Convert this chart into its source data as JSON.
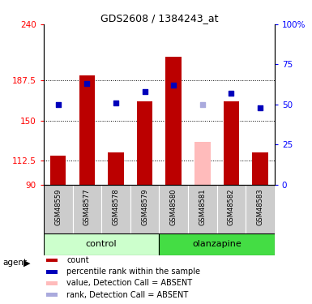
{
  "title": "GDS2608 / 1384243_at",
  "samples": [
    "GSM48559",
    "GSM48577",
    "GSM48578",
    "GSM48579",
    "GSM48580",
    "GSM48581",
    "GSM48582",
    "GSM48583"
  ],
  "red_values": [
    117,
    192,
    120,
    168,
    210,
    null,
    168,
    120
  ],
  "pink_values": [
    null,
    null,
    null,
    null,
    null,
    130,
    null,
    null
  ],
  "blue_values": [
    50,
    63,
    51,
    58,
    62,
    null,
    57,
    48
  ],
  "lightblue_values": [
    null,
    null,
    null,
    null,
    null,
    50,
    null,
    null
  ],
  "ymin": 90,
  "ymax": 240,
  "yticks": [
    90,
    112.5,
    150,
    187.5,
    240
  ],
  "ytick_labels": [
    "90",
    "112.5",
    "150",
    "187.5",
    "240"
  ],
  "right_yticks": [
    0,
    25,
    50,
    75,
    100
  ],
  "right_ytick_labels": [
    "0",
    "25",
    "50",
    "75",
    "100%"
  ],
  "group_label": "agent",
  "control_color": "#ccffcc",
  "olanzapine_color": "#44dd44",
  "bar_color_red": "#bb0000",
  "bar_color_pink": "#ffbbbb",
  "bar_color_blue": "#0000bb",
  "bar_color_lightblue": "#aaaadd",
  "sample_bg_color": "#cccccc",
  "bar_width": 0.55,
  "legend_items": [
    [
      "#bb0000",
      "count"
    ],
    [
      "#0000bb",
      "percentile rank within the sample"
    ],
    [
      "#ffbbbb",
      "value, Detection Call = ABSENT"
    ],
    [
      "#aaaadd",
      "rank, Detection Call = ABSENT"
    ]
  ]
}
